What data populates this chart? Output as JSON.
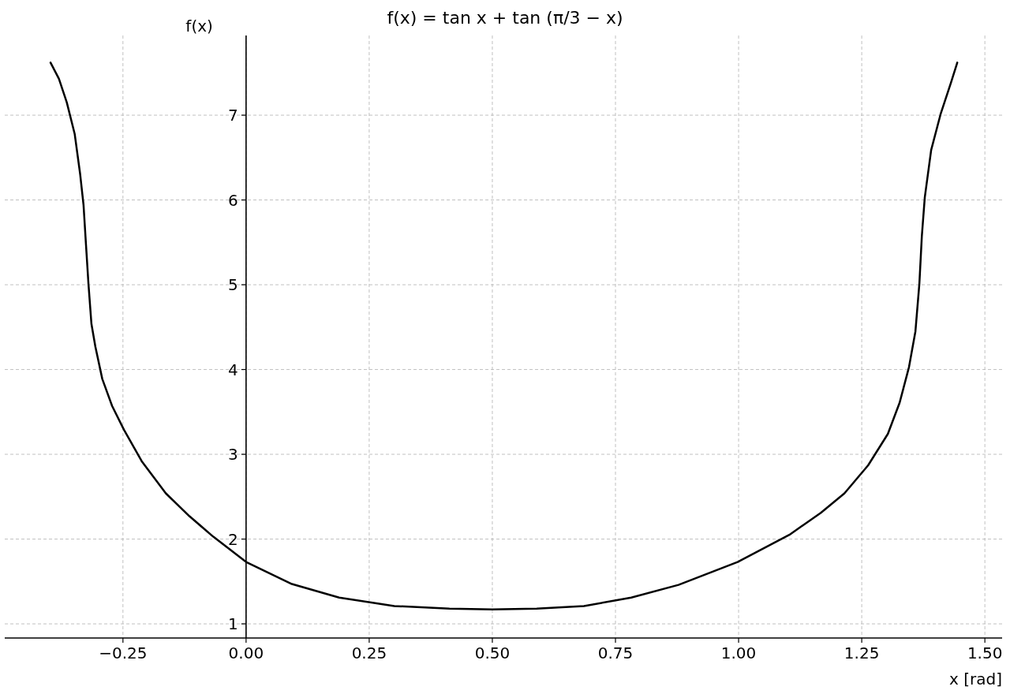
{
  "chart_data": {
    "type": "line",
    "title": "f(x) = tan x + tan (π/3 − x)",
    "xlabel": "x [rad]",
    "ylabel": "f(x)",
    "xlim": [
      -0.49,
      1.535
    ],
    "ylim": [
      0.833,
      7.94
    ],
    "xticks": [
      {
        "value": -0.25,
        "label": "−0.25"
      },
      {
        "value": 0,
        "label": "0.00"
      },
      {
        "value": 0.25,
        "label": "0.25"
      },
      {
        "value": 0.5,
        "label": "0.50"
      },
      {
        "value": 0.75,
        "label": "0.75"
      },
      {
        "value": 1,
        "label": "1.00"
      },
      {
        "value": 1.25,
        "label": "1.25"
      },
      {
        "value": 1.5,
        "label": "1.50"
      }
    ],
    "yticks": [
      1,
      2,
      3,
      4,
      5,
      6,
      7
    ],
    "grid": true,
    "line_style": "solid",
    "marker": "none",
    "series": [
      {
        "color": "#000000",
        "x": [
          -0.397,
          -0.38,
          -0.364,
          -0.348,
          -0.337,
          -0.33,
          -0.325,
          -0.32,
          -0.314,
          -0.306,
          -0.292,
          -0.272,
          -0.248,
          -0.212,
          -0.163,
          -0.115,
          -0.067,
          0,
          0.093,
          0.189,
          0.301,
          0.413,
          0.5,
          0.59,
          0.686,
          0.782,
          0.878,
          0.998,
          1.103,
          1.167,
          1.215,
          1.263,
          1.303,
          1.327,
          1.346,
          1.359,
          1.367,
          1.372,
          1.378,
          1.391,
          1.41,
          1.431,
          1.444
        ],
        "values": [
          7.62,
          7.43,
          7.15,
          6.78,
          6.31,
          5.94,
          5.47,
          5.01,
          4.54,
          4.27,
          3.89,
          3.57,
          3.29,
          2.92,
          2.54,
          2.27,
          2.03,
          1.73,
          1.47,
          1.31,
          1.21,
          1.18,
          1.17,
          1.18,
          1.21,
          1.31,
          1.46,
          1.73,
          2.05,
          2.31,
          2.54,
          2.87,
          3.24,
          3.61,
          4.03,
          4.45,
          5.01,
          5.57,
          6.03,
          6.59,
          7.01,
          7.38,
          7.62
        ]
      }
    ]
  }
}
